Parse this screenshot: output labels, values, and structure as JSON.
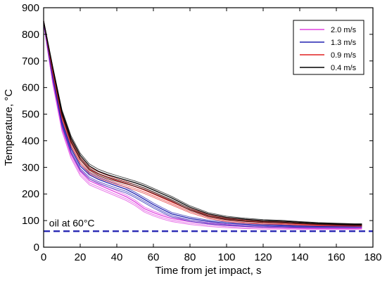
{
  "chart_data": {
    "type": "line",
    "xlabel": "Time from jet impact, s",
    "ylabel": "Temperature, °C",
    "xlim": [
      0,
      180
    ],
    "ylim": [
      0,
      900
    ],
    "x_ticks": [
      "0",
      "20",
      "40",
      "60",
      "80",
      "100",
      "120",
      "140",
      "160",
      "180"
    ],
    "y_ticks": [
      "0",
      "100",
      "200",
      "300",
      "400",
      "500",
      "600",
      "700",
      "800",
      "900"
    ],
    "grid": false,
    "legend_position": "top-right",
    "annotation": "oil at 60°C",
    "reference_line": {
      "y": 60,
      "color": "#1f1fb0"
    },
    "series": [
      {
        "name": "2.0 m/s",
        "color": "#e040e0",
        "x": [
          0,
          5,
          10,
          15,
          20,
          25,
          30,
          35,
          40,
          45,
          50,
          55,
          60,
          65,
          70,
          80,
          90,
          100,
          110,
          120,
          130,
          140,
          150,
          160,
          170,
          174
        ],
        "y": [
          840,
          620,
          450,
          350,
          285,
          250,
          235,
          220,
          205,
          190,
          170,
          145,
          130,
          118,
          108,
          96,
          88,
          82,
          78,
          75,
          74,
          72,
          71,
          71,
          71,
          72
        ]
      },
      {
        "name": "1.3 m/s",
        "color": "#2020b0",
        "x": [
          0,
          5,
          10,
          15,
          20,
          25,
          30,
          35,
          40,
          45,
          50,
          55,
          60,
          65,
          70,
          80,
          90,
          100,
          110,
          120,
          130,
          140,
          150,
          160,
          170,
          174
        ],
        "y": [
          845,
          640,
          470,
          370,
          305,
          272,
          255,
          242,
          230,
          218,
          200,
          180,
          160,
          142,
          125,
          108,
          97,
          90,
          86,
          83,
          81,
          79,
          78,
          78,
          78,
          79
        ]
      },
      {
        "name": "0.9 m/s",
        "color": "#e02020",
        "x": [
          0,
          5,
          10,
          15,
          20,
          25,
          30,
          35,
          40,
          45,
          50,
          55,
          60,
          65,
          70,
          80,
          90,
          100,
          110,
          120,
          130,
          140,
          150,
          160,
          170,
          174
        ],
        "y": [
          850,
          660,
          495,
          395,
          330,
          292,
          275,
          262,
          250,
          240,
          228,
          215,
          200,
          185,
          170,
          140,
          118,
          105,
          98,
          94,
          92,
          88,
          85,
          84,
          83,
          83
        ]
      },
      {
        "name": "0.4 m/s",
        "color": "#000000",
        "x": [
          0,
          5,
          10,
          15,
          20,
          25,
          30,
          35,
          40,
          45,
          50,
          55,
          60,
          65,
          70,
          80,
          90,
          100,
          110,
          120,
          130,
          140,
          150,
          160,
          170,
          174
        ],
        "y": [
          850,
          675,
          510,
          410,
          345,
          305,
          285,
          272,
          262,
          252,
          242,
          230,
          215,
          200,
          185,
          150,
          125,
          112,
          105,
          100,
          98,
          94,
          90,
          88,
          86,
          86
        ]
      }
    ]
  }
}
